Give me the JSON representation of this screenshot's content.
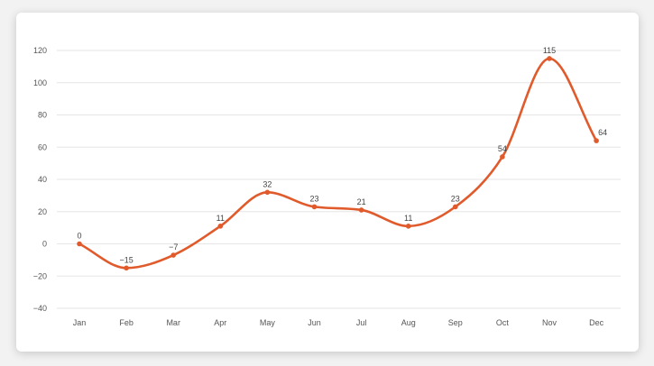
{
  "chart_data": {
    "type": "line",
    "title": "",
    "xlabel": "",
    "ylabel": "",
    "categories": [
      "Jan",
      "Feb",
      "Mar",
      "Apr",
      "May",
      "Jun",
      "Jul",
      "Aug",
      "Sep",
      "Oct",
      "Nov",
      "Dec"
    ],
    "series": [
      {
        "values": [
          0,
          -15,
          -7,
          11,
          32,
          23,
          21,
          11,
          23,
          54,
          115,
          64
        ]
      }
    ],
    "ylim": [
      -40,
      120
    ],
    "yticks": [
      -40,
      -20,
      0,
      20,
      40,
      60,
      80,
      100,
      120
    ],
    "grid": true,
    "smooth": true,
    "colors": {
      "line": "#e05a2b",
      "grid": "#e6e6e6",
      "text": "#555555"
    }
  }
}
